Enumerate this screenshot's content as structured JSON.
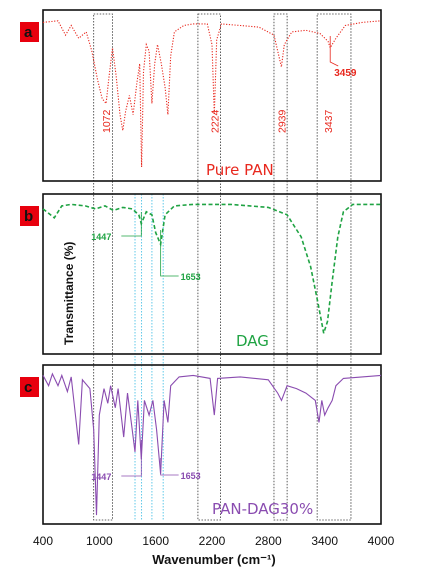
{
  "chart_data": {
    "type": "line",
    "xlabel": "Wavenumber (cm⁻¹)",
    "ylabel": "Transmittance  (%)",
    "x_ticks": [
      400,
      1000,
      1600,
      2200,
      2800,
      3400,
      4000
    ],
    "xlim": [
      400,
      4000
    ],
    "colors": {
      "pan": "#e8281e",
      "dag": "#1fa343",
      "pan_dag": "#8a4cb0",
      "frame": "#111111",
      "panel_badge": "#e8000e",
      "highlight_dark": "#333333",
      "highlight_cyan": "#4ec3e6"
    },
    "panels": [
      {
        "letter": "a",
        "title": "Pure PAN",
        "series_color": "pan",
        "line_style": "dotted",
        "peak_labels": [
          {
            "text": "1072",
            "x": 1072
          },
          {
            "text": "2224",
            "x": 2224
          },
          {
            "text": "2939",
            "x": 2939
          },
          {
            "text": "3437",
            "x": 3437
          },
          {
            "text": "3459",
            "x": 3459
          }
        ],
        "series": [
          {
            "x": 400,
            "y": 0.04
          },
          {
            "x": 560,
            "y": 0.03
          },
          {
            "x": 640,
            "y": 0.12
          },
          {
            "x": 700,
            "y": 0.06
          },
          {
            "x": 780,
            "y": 0.14
          },
          {
            "x": 860,
            "y": 0.1
          },
          {
            "x": 920,
            "y": 0.22
          },
          {
            "x": 980,
            "y": 0.4
          },
          {
            "x": 1030,
            "y": 0.52
          },
          {
            "x": 1072,
            "y": 0.55
          },
          {
            "x": 1100,
            "y": 0.4
          },
          {
            "x": 1140,
            "y": 0.2
          },
          {
            "x": 1180,
            "y": 0.38
          },
          {
            "x": 1220,
            "y": 0.62
          },
          {
            "x": 1250,
            "y": 0.72
          },
          {
            "x": 1280,
            "y": 0.6
          },
          {
            "x": 1320,
            "y": 0.5
          },
          {
            "x": 1360,
            "y": 0.62
          },
          {
            "x": 1400,
            "y": 0.42
          },
          {
            "x": 1430,
            "y": 0.3
          },
          {
            "x": 1450,
            "y": 0.95
          },
          {
            "x": 1470,
            "y": 0.35
          },
          {
            "x": 1500,
            "y": 0.18
          },
          {
            "x": 1530,
            "y": 0.22
          },
          {
            "x": 1560,
            "y": 0.55
          },
          {
            "x": 1590,
            "y": 0.3
          },
          {
            "x": 1620,
            "y": 0.18
          },
          {
            "x": 1660,
            "y": 0.3
          },
          {
            "x": 1700,
            "y": 0.45
          },
          {
            "x": 1730,
            "y": 0.62
          },
          {
            "x": 1760,
            "y": 0.25
          },
          {
            "x": 1800,
            "y": 0.1
          },
          {
            "x": 1900,
            "y": 0.06
          },
          {
            "x": 2000,
            "y": 0.05
          },
          {
            "x": 2150,
            "y": 0.05
          },
          {
            "x": 2200,
            "y": 0.18
          },
          {
            "x": 2224,
            "y": 0.62
          },
          {
            "x": 2250,
            "y": 0.15
          },
          {
            "x": 2300,
            "y": 0.05
          },
          {
            "x": 2500,
            "y": 0.06
          },
          {
            "x": 2700,
            "y": 0.07
          },
          {
            "x": 2860,
            "y": 0.12
          },
          {
            "x": 2900,
            "y": 0.22
          },
          {
            "x": 2939,
            "y": 0.32
          },
          {
            "x": 2970,
            "y": 0.18
          },
          {
            "x": 3050,
            "y": 0.1
          },
          {
            "x": 3200,
            "y": 0.09
          },
          {
            "x": 3350,
            "y": 0.11
          },
          {
            "x": 3437,
            "y": 0.16
          },
          {
            "x": 3459,
            "y": 0.2
          },
          {
            "x": 3520,
            "y": 0.14
          },
          {
            "x": 3620,
            "y": 0.06
          },
          {
            "x": 3800,
            "y": 0.04
          },
          {
            "x": 4000,
            "y": 0.03
          }
        ]
      },
      {
        "letter": "b",
        "title": "DAG",
        "series_color": "dag",
        "line_style": "dashed",
        "peak_labels": [
          {
            "text": "1447",
            "x": 1447
          },
          {
            "text": "1653",
            "x": 1653
          }
        ],
        "series": [
          {
            "x": 400,
            "y": 0.06
          },
          {
            "x": 520,
            "y": 0.12
          },
          {
            "x": 600,
            "y": 0.04
          },
          {
            "x": 700,
            "y": 0.03
          },
          {
            "x": 850,
            "y": 0.04
          },
          {
            "x": 960,
            "y": 0.06
          },
          {
            "x": 1060,
            "y": 0.04
          },
          {
            "x": 1150,
            "y": 0.07
          },
          {
            "x": 1250,
            "y": 0.05
          },
          {
            "x": 1350,
            "y": 0.06
          },
          {
            "x": 1420,
            "y": 0.1
          },
          {
            "x": 1447,
            "y": 0.16
          },
          {
            "x": 1500,
            "y": 0.08
          },
          {
            "x": 1560,
            "y": 0.1
          },
          {
            "x": 1600,
            "y": 0.22
          },
          {
            "x": 1653,
            "y": 0.3
          },
          {
            "x": 1700,
            "y": 0.1
          },
          {
            "x": 1800,
            "y": 0.04
          },
          {
            "x": 2000,
            "y": 0.03
          },
          {
            "x": 2400,
            "y": 0.03
          },
          {
            "x": 2800,
            "y": 0.05
          },
          {
            "x": 3000,
            "y": 0.1
          },
          {
            "x": 3150,
            "y": 0.25
          },
          {
            "x": 3250,
            "y": 0.45
          },
          {
            "x": 3330,
            "y": 0.7
          },
          {
            "x": 3390,
            "y": 0.9
          },
          {
            "x": 3430,
            "y": 0.82
          },
          {
            "x": 3480,
            "y": 0.55
          },
          {
            "x": 3540,
            "y": 0.25
          },
          {
            "x": 3600,
            "y": 0.08
          },
          {
            "x": 3700,
            "y": 0.03
          },
          {
            "x": 4000,
            "y": 0.03
          }
        ]
      },
      {
        "letter": "c",
        "title": "PAN-DAG30%",
        "series_color": "pan_dag",
        "line_style": "solid",
        "peak_labels": [
          {
            "text": "1447",
            "x": 1447
          },
          {
            "text": "1653",
            "x": 1653
          }
        ],
        "series": [
          {
            "x": 400,
            "y": 0.03
          },
          {
            "x": 460,
            "y": 0.1
          },
          {
            "x": 500,
            "y": 0.02
          },
          {
            "x": 560,
            "y": 0.1
          },
          {
            "x": 600,
            "y": 0.03
          },
          {
            "x": 660,
            "y": 0.14
          },
          {
            "x": 700,
            "y": 0.04
          },
          {
            "x": 780,
            "y": 0.5
          },
          {
            "x": 820,
            "y": 0.06
          },
          {
            "x": 900,
            "y": 0.12
          },
          {
            "x": 940,
            "y": 0.4
          },
          {
            "x": 970,
            "y": 0.98
          },
          {
            "x": 1000,
            "y": 0.3
          },
          {
            "x": 1050,
            "y": 0.12
          },
          {
            "x": 1090,
            "y": 0.22
          },
          {
            "x": 1120,
            "y": 0.1
          },
          {
            "x": 1170,
            "y": 0.25
          },
          {
            "x": 1200,
            "y": 0.12
          },
          {
            "x": 1260,
            "y": 0.45
          },
          {
            "x": 1300,
            "y": 0.15
          },
          {
            "x": 1340,
            "y": 0.35
          },
          {
            "x": 1380,
            "y": 0.55
          },
          {
            "x": 1410,
            "y": 0.2
          },
          {
            "x": 1447,
            "y": 0.6
          },
          {
            "x": 1480,
            "y": 0.2
          },
          {
            "x": 1530,
            "y": 0.3
          },
          {
            "x": 1570,
            "y": 0.2
          },
          {
            "x": 1610,
            "y": 0.4
          },
          {
            "x": 1653,
            "y": 0.7
          },
          {
            "x": 1690,
            "y": 0.2
          },
          {
            "x": 1730,
            "y": 0.35
          },
          {
            "x": 1760,
            "y": 0.1
          },
          {
            "x": 1850,
            "y": 0.04
          },
          {
            "x": 2000,
            "y": 0.03
          },
          {
            "x": 2180,
            "y": 0.05
          },
          {
            "x": 2224,
            "y": 0.3
          },
          {
            "x": 2260,
            "y": 0.05
          },
          {
            "x": 2500,
            "y": 0.04
          },
          {
            "x": 2800,
            "y": 0.06
          },
          {
            "x": 2900,
            "y": 0.15
          },
          {
            "x": 2940,
            "y": 0.2
          },
          {
            "x": 3000,
            "y": 0.1
          },
          {
            "x": 3100,
            "y": 0.12
          },
          {
            "x": 3200,
            "y": 0.15
          },
          {
            "x": 3300,
            "y": 0.2
          },
          {
            "x": 3340,
            "y": 0.35
          },
          {
            "x": 3370,
            "y": 0.2
          },
          {
            "x": 3400,
            "y": 0.3
          },
          {
            "x": 3437,
            "y": 0.25
          },
          {
            "x": 3480,
            "y": 0.2
          },
          {
            "x": 3520,
            "y": 0.1
          },
          {
            "x": 3600,
            "y": 0.05
          },
          {
            "x": 4000,
            "y": 0.03
          }
        ]
      }
    ]
  }
}
